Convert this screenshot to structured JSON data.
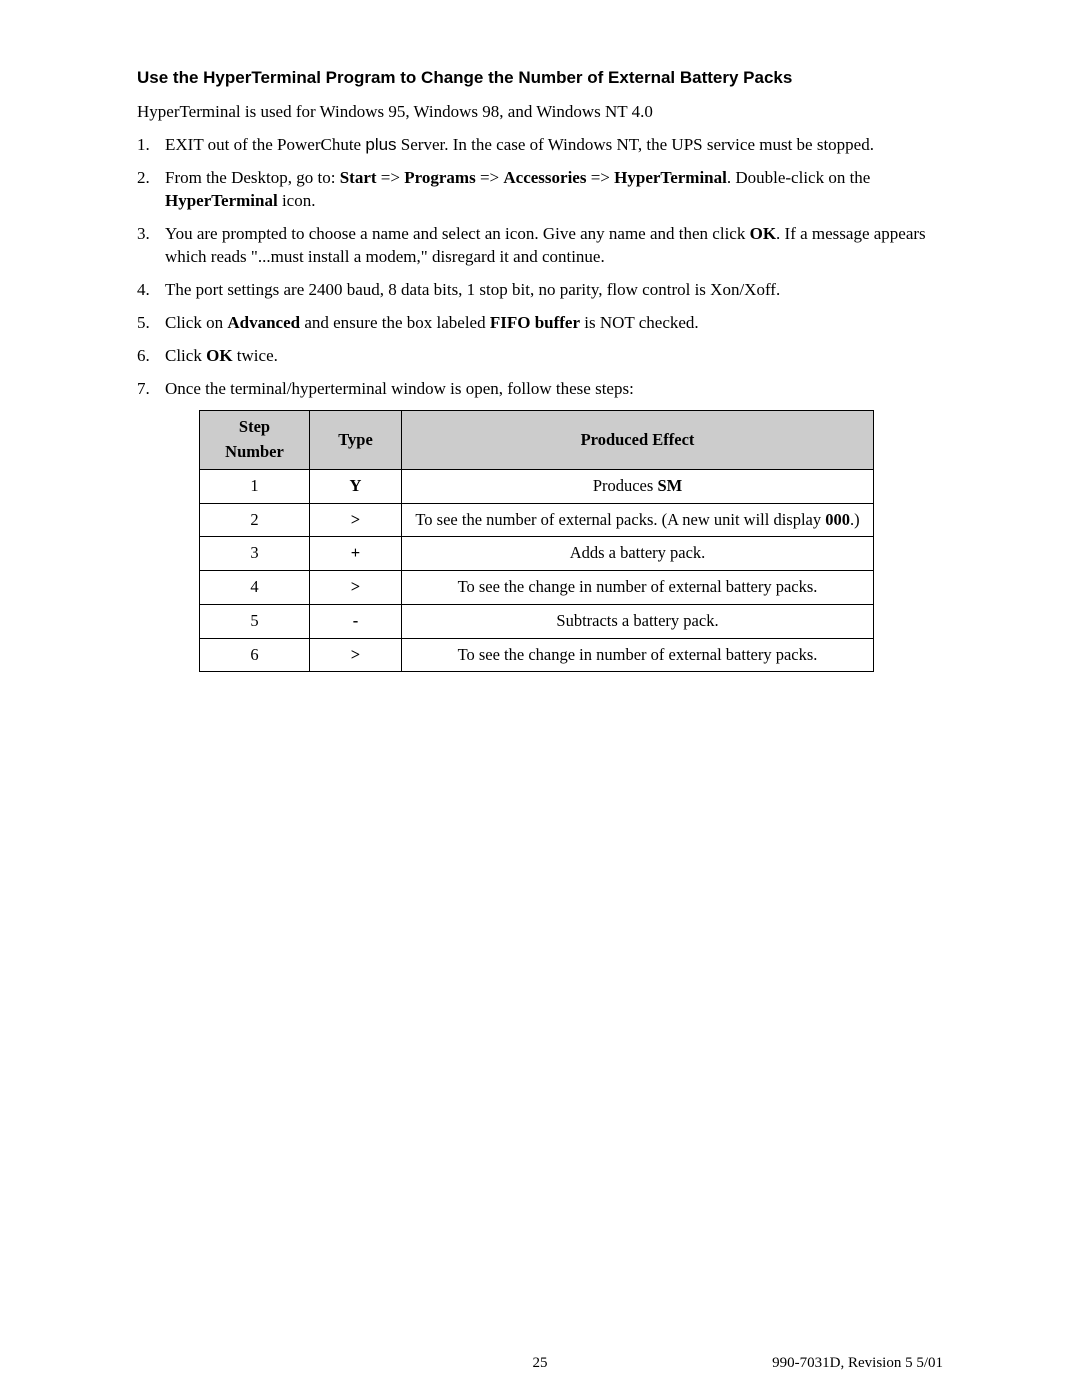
{
  "heading": "Use the HyperTerminal Program to Change the Number of External Battery Packs",
  "intro": "HyperTerminal is used for Windows 95, Windows 98,  and Windows NT 4.0",
  "steps": {
    "s1a": "EXIT out of the PowerChute ",
    "s1b": "plus",
    "s1c": " Server.  In the case of Windows NT, the UPS service must be stopped.",
    "s2a": "From the Desktop, go to: ",
    "s2_start": "Start",
    "s2_arrow": " => ",
    "s2_prog": "Programs",
    "s2_acc": "Accessories",
    "s2_hyper": "HyperTerminal",
    "s2b": ". Double-click on the ",
    "s2_hyper2": "HyperTerminal",
    "s2c": " icon.",
    "s3a": "You are prompted to choose a name and select an icon. Give any name and then click ",
    "s3_ok": "OK",
    "s3b": ". If a message appears which reads \"...must install a modem,\" disregard it and continue.",
    "s4": "The port settings are 2400 baud, 8 data bits, 1 stop bit, no parity, flow control is Xon/Xoff.",
    "s5a": "Click on ",
    "s5_adv": "Advanced",
    "s5b": " and ensure the box labeled ",
    "s5_fifo": "FIFO buffer",
    "s5c": " is NOT checked.",
    "s6a": "Click ",
    "s6_ok": "OK",
    "s6b": "  twice.",
    "s7": "Once the terminal/hyperterminal window is open, follow these steps:"
  },
  "table": {
    "headers": {
      "step": "Step Number",
      "type": "Type",
      "effect": "Produced Effect"
    },
    "rows": [
      {
        "num": "1",
        "type": "Y",
        "eff_a": "Produces ",
        "eff_b": "SM",
        "eff_c": ""
      },
      {
        "num": "2",
        "type": ">",
        "eff_a": "To see the number of external packs. (A new unit will display ",
        "eff_b": "000",
        "eff_c": ".)"
      },
      {
        "num": "3",
        "type": "+",
        "eff_a": "Adds a battery pack.",
        "eff_b": "",
        "eff_c": ""
      },
      {
        "num": "4",
        "type": ">",
        "eff_a": "To see the change in number of external battery packs.",
        "eff_b": "",
        "eff_c": ""
      },
      {
        "num": "5",
        "type": "-",
        "eff_a": "Subtracts a battery pack.",
        "eff_b": "",
        "eff_c": ""
      },
      {
        "num": "6",
        "type": ">",
        "eff_a": "To see the change in number of external battery packs.",
        "eff_b": "",
        "eff_c": ""
      }
    ]
  },
  "footer": {
    "page": "25",
    "rev": "990-7031D, Revision 5 5/01"
  }
}
